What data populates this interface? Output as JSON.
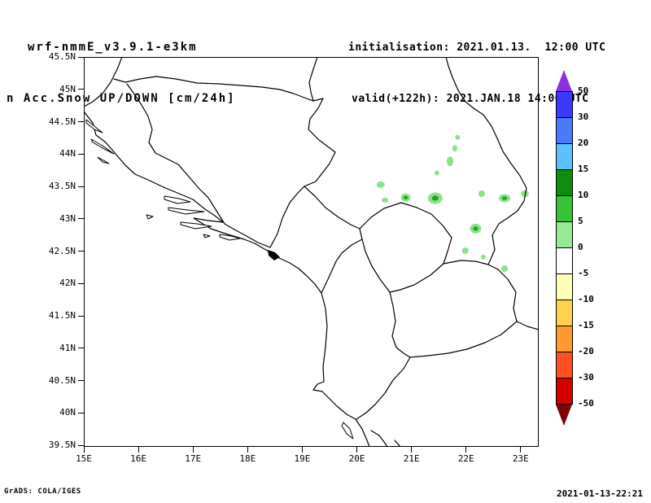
{
  "header": {
    "model": "wrf-nmmE_v3.9.1-e3km",
    "product": "n Acc.Snow UP/DOWN [cm/24h]",
    "init": "initialisation: 2021.01.13.  12:00 UTC",
    "valid": "valid(+122h): 2021.JAN.18 14:00 UTC"
  },
  "footer": {
    "credit": "GrADS: COLA/IGES",
    "timestamp": "2021-01-13-22:21"
  },
  "map": {
    "x_range": [
      15,
      23.3
    ],
    "y_range": [
      39.5,
      45.5
    ],
    "x_ticks": [
      {
        "v": 15,
        "label": "15E"
      },
      {
        "v": 16,
        "label": "16E"
      },
      {
        "v": 17,
        "label": "17E"
      },
      {
        "v": 18,
        "label": "18E"
      },
      {
        "v": 19,
        "label": "19E"
      },
      {
        "v": 20,
        "label": "20E"
      },
      {
        "v": 21,
        "label": "21E"
      },
      {
        "v": 22,
        "label": "22E"
      },
      {
        "v": 23,
        "label": "23E"
      }
    ],
    "y_ticks": [
      {
        "v": 45.5,
        "label": "45.5N"
      },
      {
        "v": 45,
        "label": "45N"
      },
      {
        "v": 44.5,
        "label": "44.5N"
      },
      {
        "v": 44,
        "label": "44N"
      },
      {
        "v": 43.5,
        "label": "43.5N"
      },
      {
        "v": 43,
        "label": "43N"
      },
      {
        "v": 42.5,
        "label": "42.5N"
      },
      {
        "v": 42,
        "label": "42N"
      },
      {
        "v": 41.5,
        "label": "41.5N"
      },
      {
        "v": 41,
        "label": "41N"
      },
      {
        "v": 40.5,
        "label": "40.5N"
      },
      {
        "v": 40,
        "label": "40N"
      },
      {
        "v": 39.5,
        "label": "39.5N"
      }
    ]
  },
  "colorbar": {
    "levels": [
      "50",
      "30",
      "20",
      "15",
      "10",
      "5",
      "0",
      "-5",
      "-10",
      "-15",
      "-20",
      "-30",
      "-50"
    ],
    "band_colors": [
      "#3a3aff",
      "#4d79ff",
      "#59c2ff",
      "#0e8c0e",
      "#35c435",
      "#96ea96",
      "#ffffff",
      "#ffffb8",
      "#ffd24d",
      "#ff9a2e",
      "#ff5024",
      "#d40000"
    ],
    "arrow_top": "#8b2fe0",
    "arrow_bottom": "#7d0404"
  },
  "snow_patches": [
    {
      "lon": 20.42,
      "lat": 43.54,
      "rx": 5,
      "ry": 4,
      "core": false
    },
    {
      "lon": 20.5,
      "lat": 43.3,
      "rx": 4,
      "ry": 3,
      "core": false
    },
    {
      "lon": 20.88,
      "lat": 43.34,
      "rx": 6,
      "ry": 5,
      "core": true
    },
    {
      "lon": 21.42,
      "lat": 43.33,
      "rx": 9,
      "ry": 7,
      "core": true
    },
    {
      "lon": 21.45,
      "lat": 43.72,
      "rx": 3,
      "ry": 3,
      "core": false
    },
    {
      "lon": 21.69,
      "lat": 43.9,
      "rx": 4,
      "ry": 6,
      "core": false
    },
    {
      "lon": 21.78,
      "lat": 44.1,
      "rx": 3,
      "ry": 4,
      "core": false
    },
    {
      "lon": 21.83,
      "lat": 44.27,
      "rx": 3,
      "ry": 3,
      "core": false
    },
    {
      "lon": 22.27,
      "lat": 43.4,
      "rx": 4,
      "ry": 4,
      "core": false
    },
    {
      "lon": 22.69,
      "lat": 43.33,
      "rx": 7,
      "ry": 5,
      "core": true
    },
    {
      "lon": 23.06,
      "lat": 43.4,
      "rx": 5,
      "ry": 4,
      "core": false
    },
    {
      "lon": 22.16,
      "lat": 42.86,
      "rx": 7,
      "ry": 6,
      "core": true
    },
    {
      "lon": 21.97,
      "lat": 42.52,
      "rx": 4,
      "ry": 4,
      "core": false
    },
    {
      "lon": 22.3,
      "lat": 42.42,
      "rx": 3,
      "ry": 3,
      "core": false
    },
    {
      "lon": 22.69,
      "lat": 42.24,
      "rx": 4,
      "ry": 4,
      "core": false
    }
  ],
  "colors": {
    "snow_light": "#8ce28c",
    "snow_core": "#23a523",
    "line": "#000000"
  }
}
